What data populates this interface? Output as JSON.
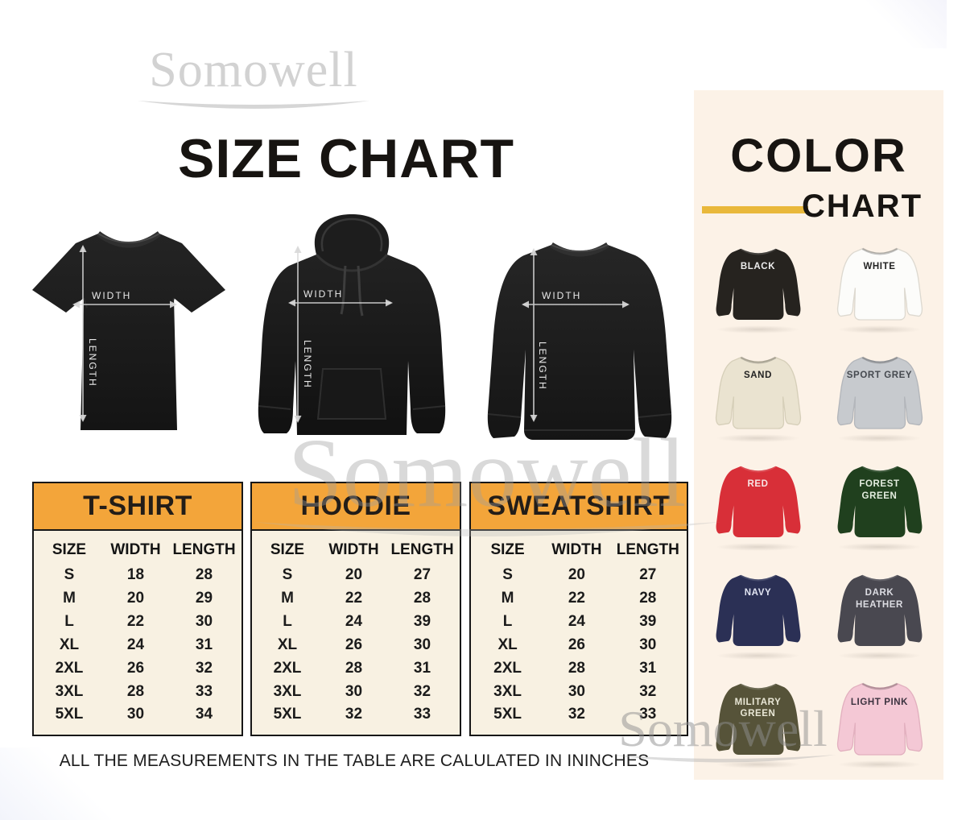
{
  "brand": {
    "logo_text": "Somowell",
    "watermark_text": "Somowell"
  },
  "size_chart": {
    "title": "SIZE CHART",
    "table_header_color": "#f3a53a",
    "garments": [
      {
        "name": "t-shirt",
        "width_label": "WIDTH",
        "length_label": "LENGTH"
      },
      {
        "name": "hoodie",
        "width_label": "WIDTH",
        "length_label": "LENGTH"
      },
      {
        "name": "sweatshirt",
        "width_label": "WIDTH",
        "length_label": "LENGTH"
      }
    ],
    "tables": [
      {
        "title": "T-SHIRT",
        "columns": [
          "SIZE",
          "WIDTH",
          "LENGTH"
        ],
        "rows": [
          [
            "S",
            "18",
            "28"
          ],
          [
            "M",
            "20",
            "29"
          ],
          [
            "L",
            "22",
            "30"
          ],
          [
            "XL",
            "24",
            "31"
          ],
          [
            "2XL",
            "26",
            "32"
          ],
          [
            "3XL",
            "28",
            "33"
          ],
          [
            "5XL",
            "30",
            "34"
          ]
        ]
      },
      {
        "title": "HOODIE",
        "columns": [
          "SIZE",
          "WIDTH",
          "LENGTH"
        ],
        "rows": [
          [
            "S",
            "20",
            "27"
          ],
          [
            "M",
            "22",
            "28"
          ],
          [
            "L",
            "24",
            "39"
          ],
          [
            "XL",
            "26",
            "30"
          ],
          [
            "2XL",
            "28",
            "31"
          ],
          [
            "3XL",
            "30",
            "32"
          ],
          [
            "5XL",
            "32",
            "33"
          ]
        ]
      },
      {
        "title": "SWEATSHIRT",
        "columns": [
          "SIZE",
          "WIDTH",
          "LENGTH"
        ],
        "rows": [
          [
            "S",
            "20",
            "27"
          ],
          [
            "M",
            "22",
            "28"
          ],
          [
            "L",
            "24",
            "39"
          ],
          [
            "XL",
            "26",
            "30"
          ],
          [
            "2XL",
            "28",
            "31"
          ],
          [
            "3XL",
            "30",
            "32"
          ],
          [
            "5XL",
            "32",
            "33"
          ]
        ]
      }
    ],
    "footnote": "ALL THE MEASUREMENTS IN THE TABLE ARE CALULATED IN ININCHES"
  },
  "color_chart": {
    "title_line1": "COLOR",
    "title_line2": "CHART",
    "accent_color": "#e9b83b",
    "panel_color": "#fcf2e7",
    "colors": [
      {
        "label": "BLACK",
        "hex": "#26231f",
        "text_color": "#ececec"
      },
      {
        "label": "WHITE",
        "hex": "#fcfcfa",
        "text_color": "#222222",
        "outline": "#ddd9d0"
      },
      {
        "label": "SAND",
        "hex": "#eae3d0",
        "text_color": "#222222",
        "outline": "#d6cfb9"
      },
      {
        "label": "SPORT GREY",
        "hex": "#c7cace",
        "text_color": "#45494f",
        "outline": "#b3b6bb"
      },
      {
        "label": "RED",
        "hex": "#d82f38",
        "text_color": "#f7e5e5"
      },
      {
        "label": "FOREST GREEN",
        "hex": "#20401e",
        "text_color": "#e3ecdf"
      },
      {
        "label": "NAVY",
        "hex": "#2b3055",
        "text_color": "#e2e5f2"
      },
      {
        "label": "DARK HEATHER",
        "hex": "#494850",
        "text_color": "#dcdce2"
      },
      {
        "label": "MILITARY GREEN",
        "hex": "#565339",
        "text_color": "#e9e7d6"
      },
      {
        "label": "LIGHT PINK",
        "hex": "#f4c8d5",
        "text_color": "#3c3340",
        "outline": "#e2b0bf"
      }
    ]
  }
}
